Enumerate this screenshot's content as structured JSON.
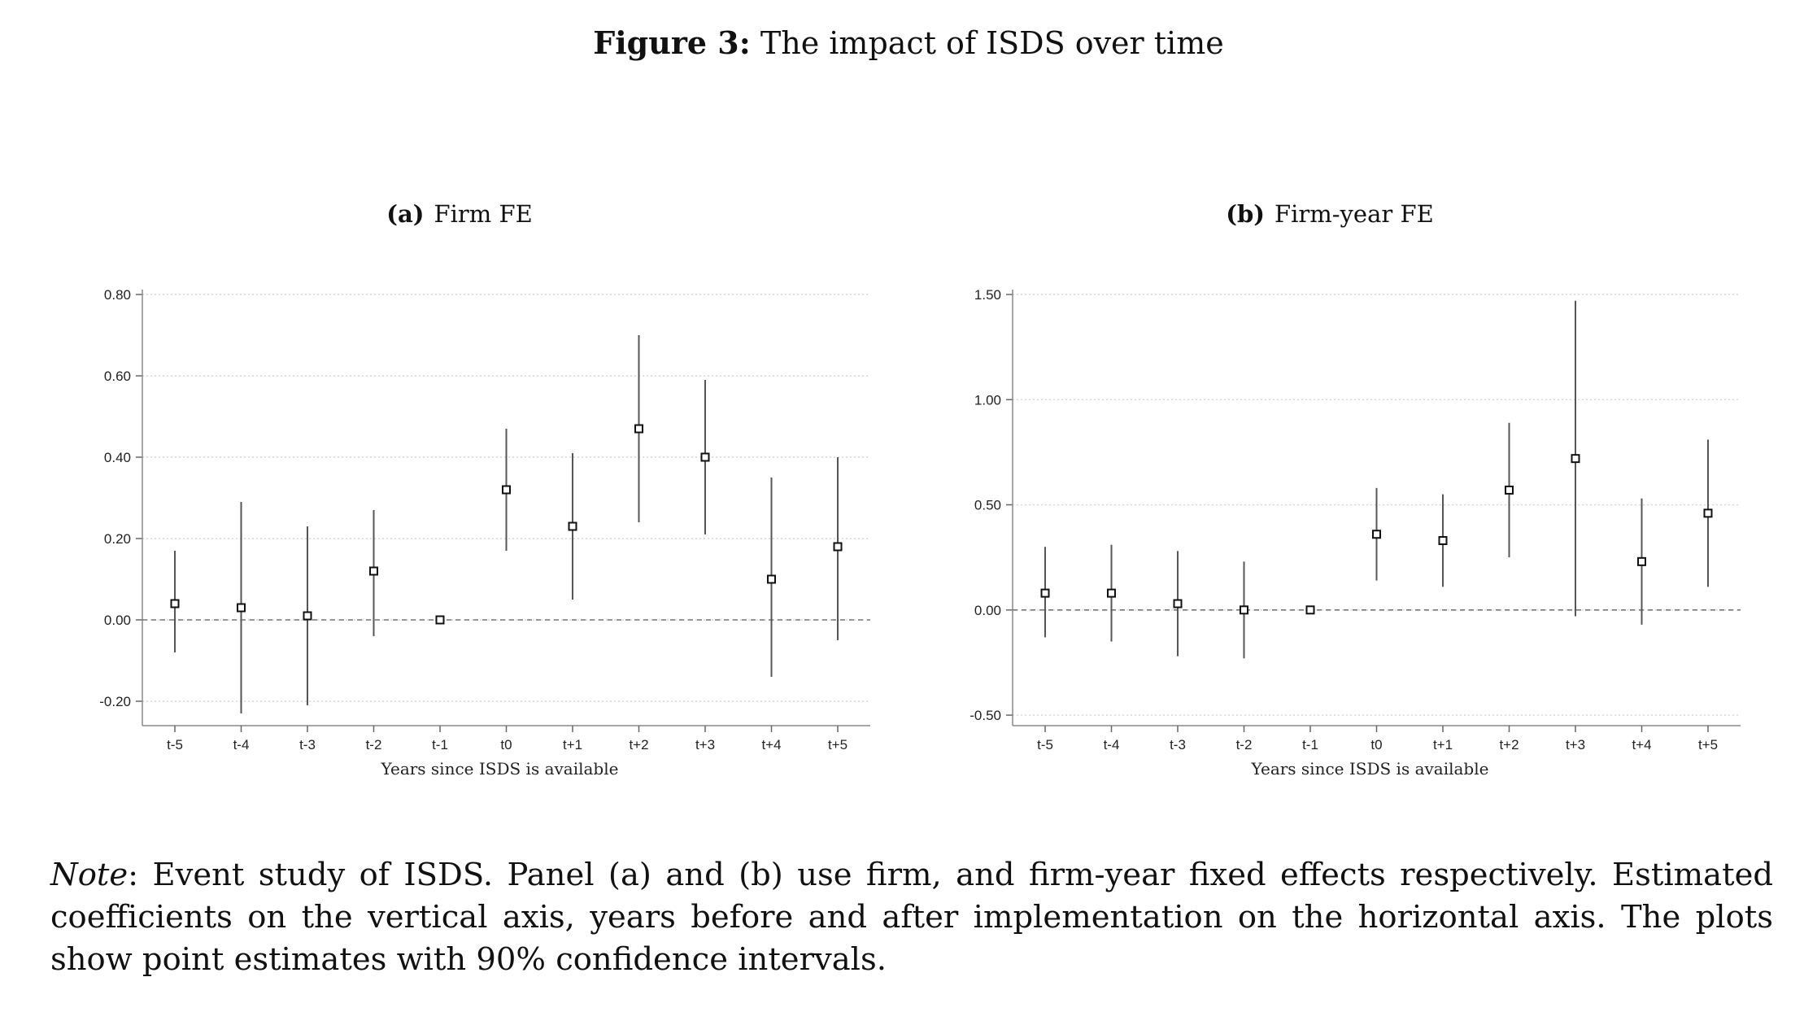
{
  "figure": {
    "label": "Figure 3:",
    "title": "The impact of ISDS over time"
  },
  "chart_data": [
    {
      "type": "scatter",
      "panel_label": "(a)",
      "title": "Firm FE",
      "xlabel": "Years since ISDS is available",
      "ylabel": "",
      "categories": [
        "t-5",
        "t-4",
        "t-3",
        "t-2",
        "t-1",
        "t0",
        "t+1",
        "t+2",
        "t+3",
        "t+4",
        "t+5"
      ],
      "ylim": [
        -0.26,
        0.8
      ],
      "yticks": [
        "0.80",
        "0.60",
        "0.40",
        "0.20",
        "0.00",
        "-0.20"
      ],
      "ytick_values": [
        0.8,
        0.6,
        0.4,
        0.2,
        0.0,
        -0.2
      ],
      "reference_line": 0,
      "grid": true,
      "series": [
        {
          "values": [
            0.04,
            0.03,
            0.01,
            0.12,
            0.0,
            0.32,
            0.23,
            0.47,
            0.4,
            0.1,
            0.18
          ],
          "ci_low": [
            -0.08,
            -0.23,
            -0.21,
            -0.04,
            0.0,
            0.17,
            0.05,
            0.24,
            0.21,
            -0.14,
            -0.05
          ],
          "ci_high": [
            0.17,
            0.29,
            0.23,
            0.27,
            0.0,
            0.47,
            0.41,
            0.7,
            0.59,
            0.35,
            0.4
          ]
        }
      ]
    },
    {
      "type": "scatter",
      "panel_label": "(b)",
      "title": "Firm-year FE",
      "xlabel": "Years since ISDS is available",
      "ylabel": "",
      "categories": [
        "t-5",
        "t-4",
        "t-3",
        "t-2",
        "t-1",
        "t0",
        "t+1",
        "t+2",
        "t+3",
        "t+4",
        "t+5"
      ],
      "ylim": [
        -0.55,
        1.5
      ],
      "yticks": [
        "1.50",
        "1.00",
        "0.50",
        "0.00",
        "-0.50"
      ],
      "ytick_values": [
        1.5,
        1.0,
        0.5,
        0.0,
        -0.5
      ],
      "reference_line": 0,
      "grid": true,
      "series": [
        {
          "values": [
            0.08,
            0.08,
            0.03,
            0.0,
            0.0,
            0.36,
            0.33,
            0.57,
            0.72,
            0.23,
            0.46
          ],
          "ci_low": [
            -0.13,
            -0.15,
            -0.22,
            -0.23,
            0.0,
            0.14,
            0.11,
            0.25,
            -0.03,
            -0.07,
            0.11
          ],
          "ci_high": [
            0.3,
            0.31,
            0.28,
            0.23,
            0.0,
            0.58,
            0.55,
            0.89,
            1.47,
            0.53,
            0.81
          ]
        }
      ]
    }
  ],
  "caption": {
    "note_label": "Note",
    "text": ": Event study of ISDS. Panel (a) and (b) use firm, and firm-year fixed effects respectively. Estimated coefficients on the vertical axis, years before and after implementation on the horizontal axis. The plots show point estimates with 90% confidence intervals."
  }
}
